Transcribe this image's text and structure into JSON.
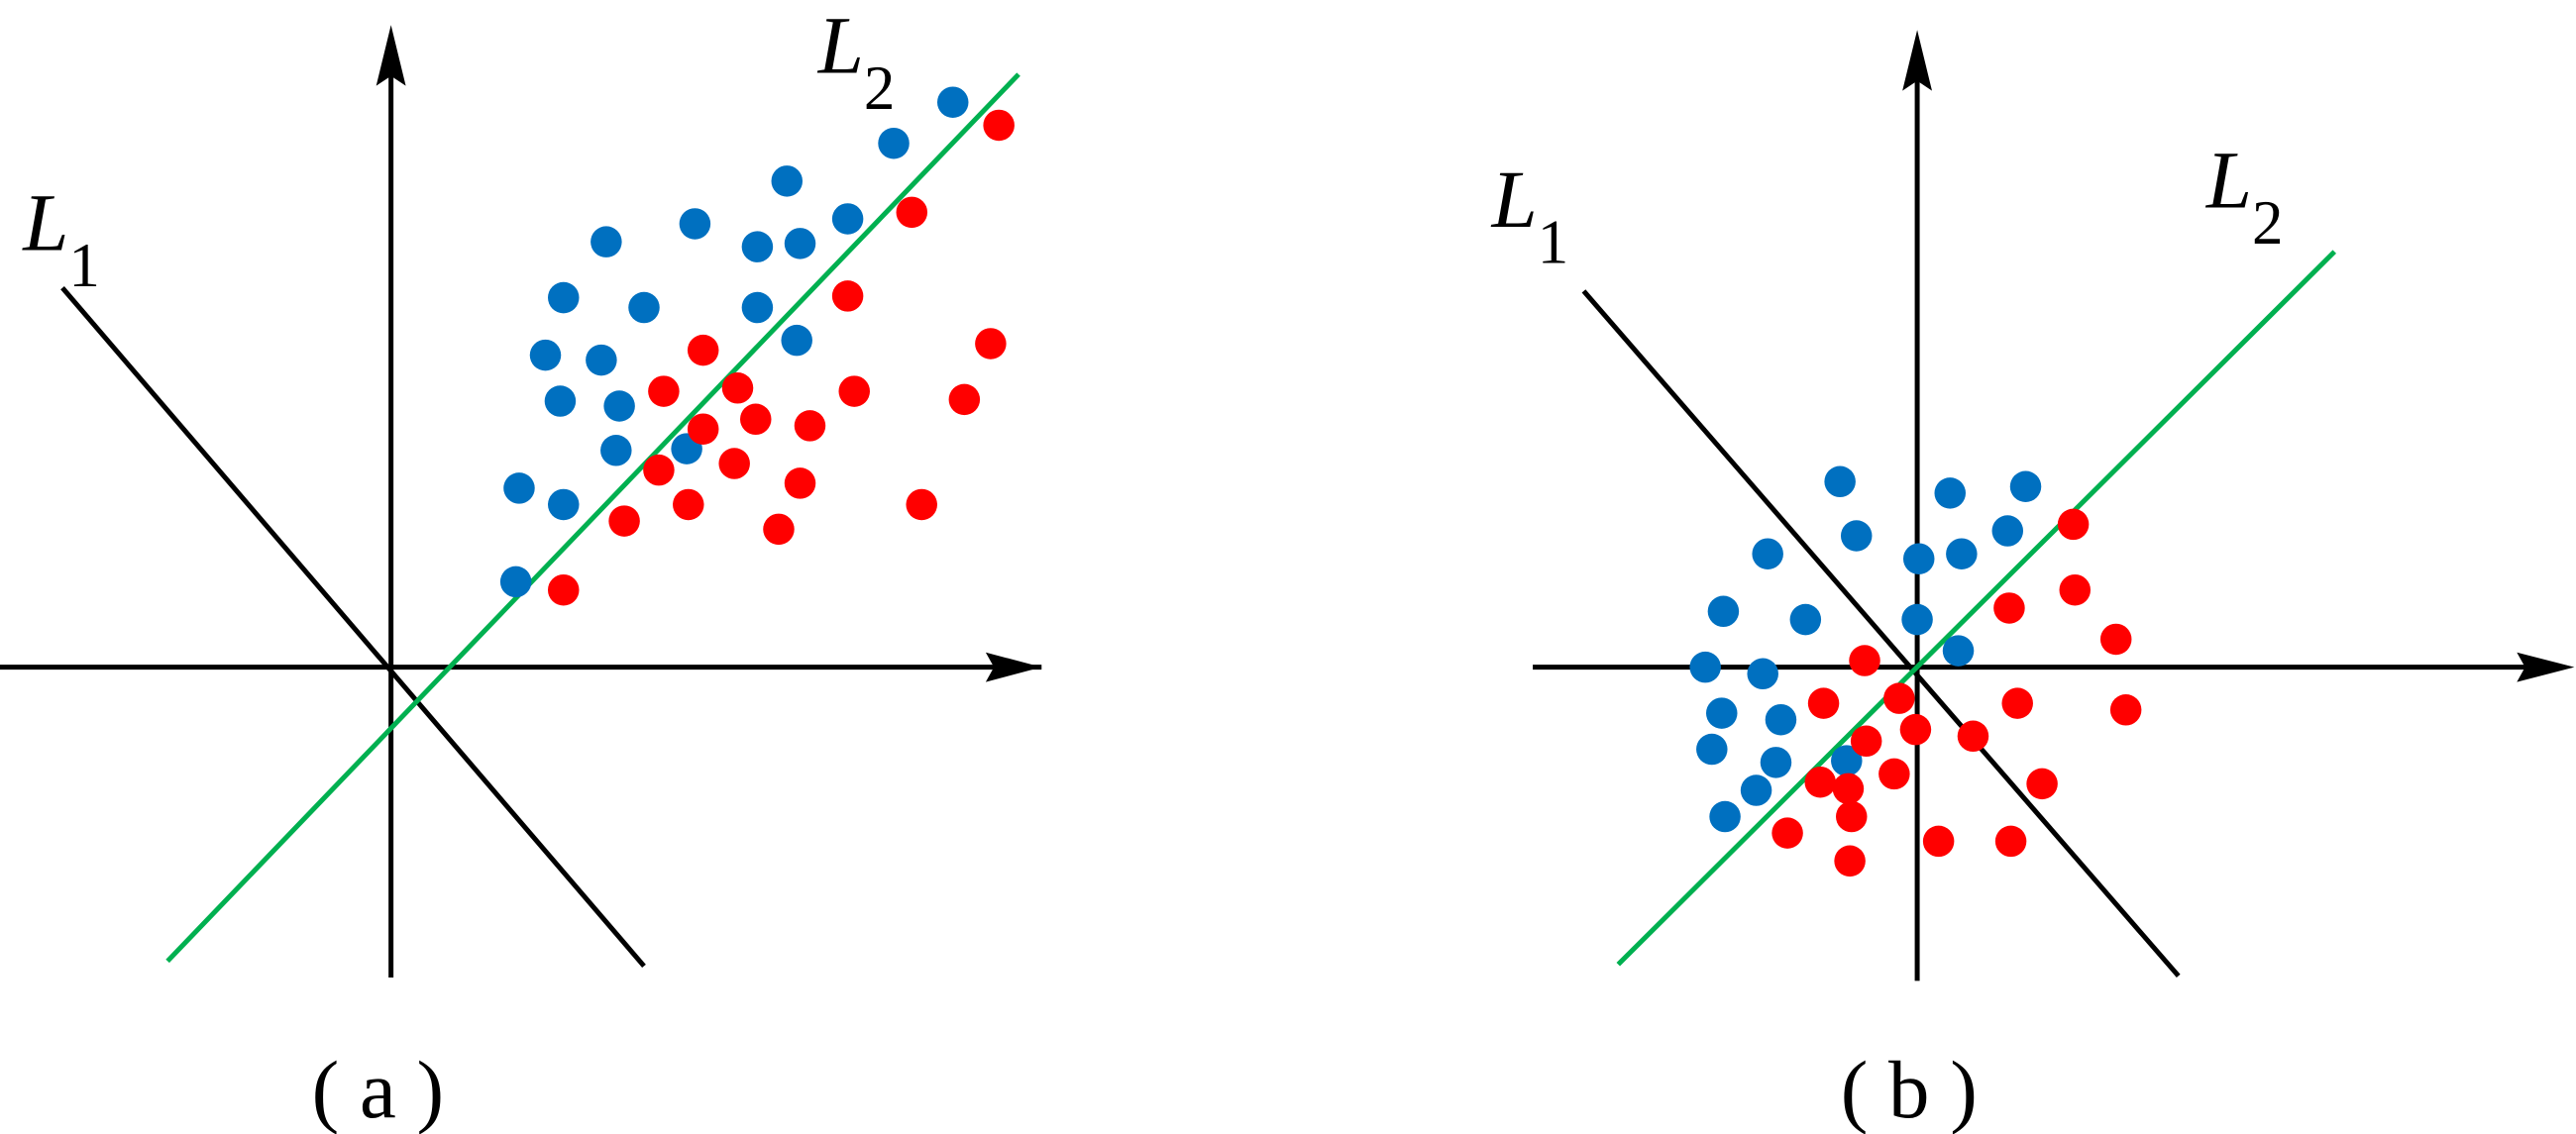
{
  "colors": {
    "class_a": "#0070c0",
    "class_b": "#ff0000",
    "l1": "#000000",
    "l2": "#00b050",
    "axes": "#000000"
  },
  "panels": [
    {
      "caption": "( a )",
      "l1_label": {
        "main": "L",
        "sub": "1"
      },
      "l2_label": {
        "main": "L",
        "sub": "2"
      }
    },
    {
      "caption": "( b )",
      "l1_label": {
        "main": "L",
        "sub": "1"
      },
      "l2_label": {
        "main": "L",
        "sub": "2"
      }
    }
  ]
}
